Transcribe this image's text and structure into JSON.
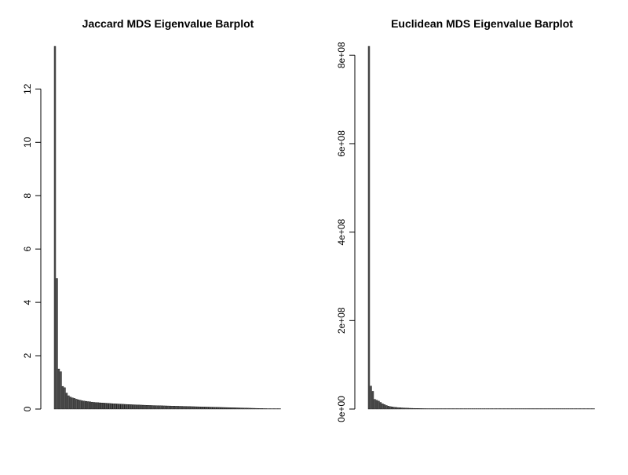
{
  "chart_data": [
    {
      "type": "bar",
      "title": "Jaccard MDS Eigenvalue Barplot",
      "xlabel": "",
      "ylabel": "",
      "ylim": [
        0,
        13.6
      ],
      "yticks": [
        0,
        2,
        4,
        6,
        8,
        10,
        12
      ],
      "ytick_labels": [
        "0",
        "2",
        "4",
        "6",
        "8",
        "10",
        "12"
      ],
      "grid": false,
      "bar_fill": "#555555",
      "bar_stroke": "#000000",
      "values": [
        13.6,
        4.9,
        1.5,
        1.4,
        0.85,
        0.8,
        0.6,
        0.5,
        0.45,
        0.42,
        0.4,
        0.37,
        0.35,
        0.33,
        0.31,
        0.3,
        0.29,
        0.28,
        0.27,
        0.26,
        0.25,
        0.245,
        0.24,
        0.235,
        0.23,
        0.225,
        0.22,
        0.215,
        0.21,
        0.205,
        0.2,
        0.196,
        0.192,
        0.188,
        0.184,
        0.18,
        0.176,
        0.172,
        0.168,
        0.165,
        0.162,
        0.159,
        0.156,
        0.153,
        0.15,
        0.147,
        0.144,
        0.141,
        0.138,
        0.135,
        0.132,
        0.13,
        0.128,
        0.126,
        0.124,
        0.122,
        0.12,
        0.118,
        0.116,
        0.114,
        0.112,
        0.11,
        0.108,
        0.106,
        0.104,
        0.102,
        0.1,
        0.098,
        0.096,
        0.094,
        0.092,
        0.09,
        0.088,
        0.086,
        0.084,
        0.082,
        0.08,
        0.078,
        0.076,
        0.074,
        0.072,
        0.07,
        0.068,
        0.066,
        0.064,
        0.062,
        0.06,
        0.058,
        0.056,
        0.054,
        0.052,
        0.05,
        0.048,
        0.046,
        0.044,
        0.042,
        0.04,
        0.038,
        0.036,
        0.034,
        0.032,
        0.03,
        0.028,
        0.026,
        0.024,
        0.022,
        0.02,
        0.018,
        0.016,
        0.014,
        0.012,
        0.01,
        0.008,
        0.006,
        0.004,
        0.002
      ]
    },
    {
      "type": "bar",
      "title": "Euclidean MDS Eigenvalue Barplot",
      "xlabel": "",
      "ylabel": "",
      "ylim": [
        0,
        820000000
      ],
      "yticks": [
        0,
        200000000,
        400000000,
        600000000,
        800000000
      ],
      "ytick_labels": [
        "0e+00",
        "2e+08",
        "4e+08",
        "6e+08",
        "8e+08"
      ],
      "grid": false,
      "bar_fill": "#555555",
      "bar_stroke": "#000000",
      "values": [
        820000000,
        52000000,
        40000000,
        22000000,
        20000000,
        18000000,
        15000000,
        12000000,
        10000000,
        8000000,
        6500000,
        5500000,
        4800000,
        4200000,
        3700000,
        3300000,
        3000000,
        2700000,
        2400000,
        2200000,
        2000000,
        1800000,
        1650000,
        1500000,
        1400000,
        1300000,
        1200000,
        1100000,
        1000000,
        950000,
        900000,
        850000,
        800000,
        760000,
        720000,
        680000,
        640000,
        600000,
        570000,
        540000,
        510000,
        480000,
        450000,
        420000,
        400000,
        380000,
        360000,
        340000,
        320000,
        300000,
        285000,
        270000,
        255000,
        240000,
        225000,
        210000,
        200000,
        190000,
        180000,
        170000,
        160000,
        150000,
        140000,
        130000,
        120000,
        110000,
        100000,
        95000,
        90000,
        85000,
        80000,
        75000,
        70000,
        65000,
        60000,
        55000,
        50000,
        45000,
        40000,
        36000,
        32000,
        28000,
        24000,
        20000,
        18000,
        16000,
        14000,
        12000,
        10000,
        9000,
        8000,
        7000,
        6000,
        5000,
        4500,
        4000,
        3500,
        3000,
        2500,
        2000,
        1800,
        1600,
        1400,
        1200,
        1000,
        900,
        800,
        700,
        600,
        500,
        400,
        300,
        200,
        150,
        100,
        50
      ]
    }
  ]
}
